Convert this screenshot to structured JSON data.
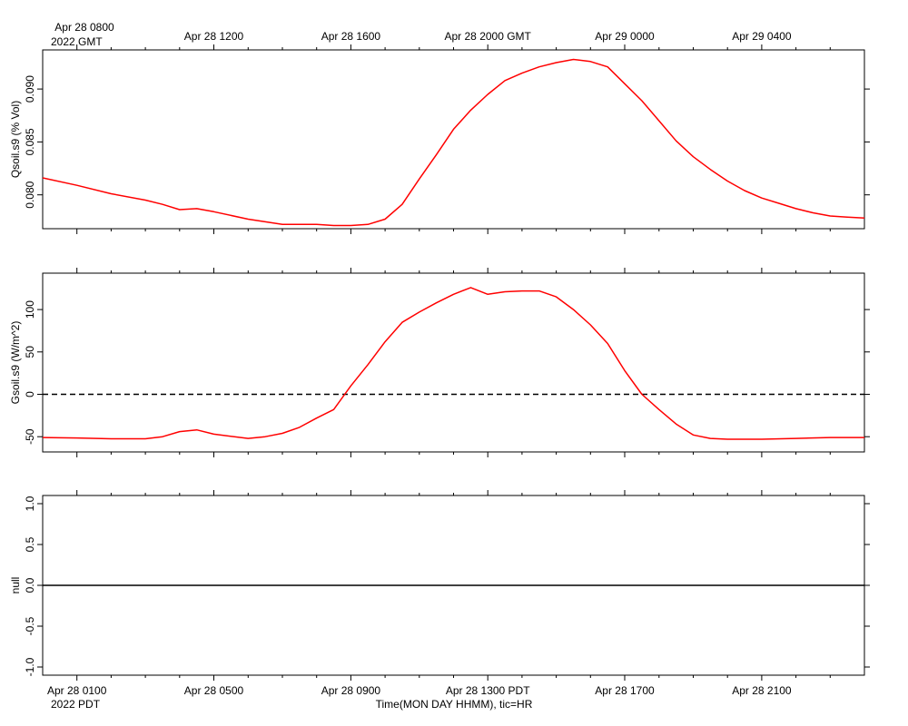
{
  "colors": {
    "series": "#ff0000",
    "axis": "#000000",
    "zero_line": "#000000"
  },
  "top_axis": {
    "first_label": "Apr 28 0800",
    "year_label": "2022 GMT",
    "tick_labels": [
      "Apr 28 1200",
      "Apr 28 1600",
      "Apr 28 2000 GMT",
      "Apr 29 0000",
      "Apr 29 0400"
    ]
  },
  "bottom_axis": {
    "tick_labels": [
      "Apr 28 0100",
      "Apr 28 0500",
      "Apr 28 0900",
      "Apr 28 1300 PDT",
      "Apr 28 1700",
      "Apr 28 2100"
    ],
    "year_label": "2022 PDT",
    "xlabel": "Time(MON DAY HHMM), tic=HR"
  },
  "chart_data": [
    {
      "type": "line",
      "ylabel": "Qsoil.s9 (% Vol)",
      "x_unit": "hours since Apr 28 0000 PDT",
      "xlim": [
        0,
        24
      ],
      "ylim": [
        0.0768,
        0.0937
      ],
      "yticks": [
        0.08,
        0.085,
        0.09
      ],
      "ytick_labels": [
        "0.080",
        "0.085",
        "0.090"
      ],
      "x": [
        0,
        1,
        2,
        3,
        3.5,
        4,
        4.5,
        5,
        6,
        7,
        8,
        8.5,
        9,
        9.5,
        10,
        10.5,
        11,
        11.5,
        12,
        12.5,
        13,
        13.5,
        14,
        14.5,
        15,
        15.5,
        16,
        16.5,
        17,
        17.5,
        18,
        18.5,
        19,
        19.5,
        20,
        20.5,
        21,
        21.5,
        22,
        22.5,
        23,
        23.5,
        24
      ],
      "values": [
        0.0816,
        0.0809,
        0.0801,
        0.0795,
        0.0791,
        0.0786,
        0.0787,
        0.0784,
        0.0777,
        0.0772,
        0.0772,
        0.0771,
        0.0771,
        0.0772,
        0.0777,
        0.0791,
        0.0815,
        0.0838,
        0.0862,
        0.088,
        0.0895,
        0.0908,
        0.0915,
        0.0921,
        0.0925,
        0.0928,
        0.0926,
        0.0921,
        0.0905,
        0.0889,
        0.087,
        0.0851,
        0.0836,
        0.0824,
        0.0813,
        0.0804,
        0.0797,
        0.0792,
        0.0787,
        0.0783,
        0.078,
        0.0779,
        0.0778
      ]
    },
    {
      "type": "line",
      "ylabel": "Gsoil.s9 (W/m^2)",
      "x_unit": "hours since Apr 28 0000 PDT",
      "xlim": [
        0,
        24
      ],
      "ylim": [
        -68,
        143
      ],
      "yticks": [
        -50,
        0,
        50,
        100
      ],
      "ytick_labels": [
        "-50",
        "0",
        "50",
        "100"
      ],
      "zero_line": true,
      "x": [
        0,
        1,
        2,
        3,
        3.5,
        4,
        4.5,
        5,
        6,
        6.5,
        7,
        7.5,
        8,
        8.5,
        9,
        9.5,
        10,
        10.5,
        11,
        11.5,
        12,
        12.5,
        13,
        13.5,
        14,
        14.5,
        15,
        15.5,
        16,
        16.5,
        17,
        17.5,
        18,
        18.5,
        19,
        19.5,
        20,
        21,
        22,
        23,
        24
      ],
      "values": [
        -51,
        -51.5,
        -52.5,
        -52.5,
        -50,
        -44,
        -42,
        -47,
        -52,
        -50,
        -46,
        -39,
        -28,
        -18,
        10,
        35,
        62,
        85,
        97,
        108,
        118,
        126,
        118,
        121,
        122,
        122,
        115,
        100,
        82,
        60,
        28,
        0,
        -18,
        -35,
        -48,
        -52,
        -53,
        -53,
        -52,
        -51,
        -51
      ]
    },
    {
      "type": "line",
      "ylabel": "null",
      "x_unit": "hours since Apr 28 0000 PDT",
      "xlim": [
        0,
        24
      ],
      "ylim": [
        -1.1,
        1.1
      ],
      "yticks": [
        -1.0,
        -0.5,
        0.0,
        0.5,
        1.0
      ],
      "ytick_labels": [
        "-1.0",
        "-0.5",
        "0.0",
        "0.5",
        "1.0"
      ],
      "x": [
        0,
        24
      ],
      "values": [
        0,
        0
      ]
    }
  ]
}
